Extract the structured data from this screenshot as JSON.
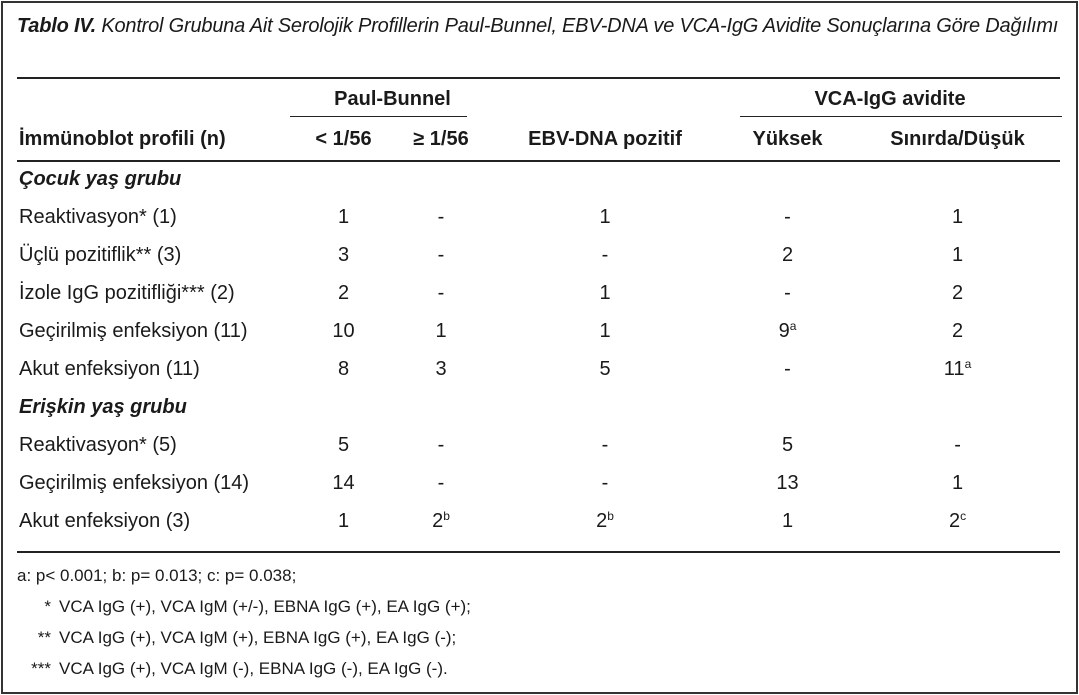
{
  "caption": {
    "label": "Tablo IV.",
    "text": "Kontrol Grubuna Ait Serolojik Profillerin Paul-Bunnel, EBV-DNA ve VCA-IgG Avidite Sonuçlarına Göre Dağılımı"
  },
  "header": {
    "group_paul": "Paul-Bunnel",
    "group_vca": "VCA-IgG avidite",
    "columns": [
      "İmmünoblot profili (n)",
      "< 1/56",
      "≥ 1/56",
      "EBV-DNA pozitif",
      "Yüksek",
      "Sınırda/Düşük"
    ]
  },
  "groups": [
    {
      "title": "Çocuk yaş grubu",
      "rows": [
        {
          "label": "Reaktivasyon* (1)",
          "cells": [
            {
              "v": "1"
            },
            {
              "v": "-"
            },
            {
              "v": "1"
            },
            {
              "v": "-"
            },
            {
              "v": "1"
            }
          ]
        },
        {
          "label": "Üçlü pozitiflik** (3)",
          "cells": [
            {
              "v": "3"
            },
            {
              "v": "-"
            },
            {
              "v": "-"
            },
            {
              "v": "2"
            },
            {
              "v": "1"
            }
          ]
        },
        {
          "label": "İzole IgG pozitifliği*** (2)",
          "cells": [
            {
              "v": "2"
            },
            {
              "v": "-"
            },
            {
              "v": "1"
            },
            {
              "v": "-"
            },
            {
              "v": "2"
            }
          ]
        },
        {
          "label": "Geçirilmiş enfeksiyon (11)",
          "cells": [
            {
              "v": "10"
            },
            {
              "v": "1"
            },
            {
              "v": "1"
            },
            {
              "v": "9",
              "sup": "a"
            },
            {
              "v": "2"
            }
          ]
        },
        {
          "label": "Akut enfeksiyon (11)",
          "cells": [
            {
              "v": "8"
            },
            {
              "v": "3"
            },
            {
              "v": "5"
            },
            {
              "v": "-"
            },
            {
              "v": "11",
              "sup": "a"
            }
          ]
        }
      ]
    },
    {
      "title": "Erişkin yaş grubu",
      "rows": [
        {
          "label": "Reaktivasyon* (5)",
          "cells": [
            {
              "v": "5"
            },
            {
              "v": "-"
            },
            {
              "v": "-"
            },
            {
              "v": "5"
            },
            {
              "v": "-"
            }
          ]
        },
        {
          "label": "Geçirilmiş enfeksiyon (14)",
          "cells": [
            {
              "v": "14"
            },
            {
              "v": "-"
            },
            {
              "v": "-"
            },
            {
              "v": "13"
            },
            {
              "v": "1"
            }
          ]
        },
        {
          "label": "Akut enfeksiyon (3)",
          "cells": [
            {
              "v": "1"
            },
            {
              "v": "2",
              "sup": "b"
            },
            {
              "v": "2",
              "sup": "b"
            },
            {
              "v": "1"
            },
            {
              "v": "2",
              "sup": "c"
            }
          ]
        }
      ]
    }
  ],
  "footnotes": {
    "pvalues": "a: p< 0.001; b: p= 0.013;  c: p= 0.038;",
    "notes": [
      {
        "mark": "*",
        "text": "VCA IgG (+), VCA IgM (+/-), EBNA IgG (+), EA IgG (+);"
      },
      {
        "mark": "**",
        "text": "VCA IgG (+), VCA IgM (+), EBNA IgG (+), EA IgG (-);"
      },
      {
        "mark": "***",
        "text": "VCA IgG (+), VCA IgM (-), EBNA IgG (-), EA IgG (-)."
      }
    ]
  }
}
